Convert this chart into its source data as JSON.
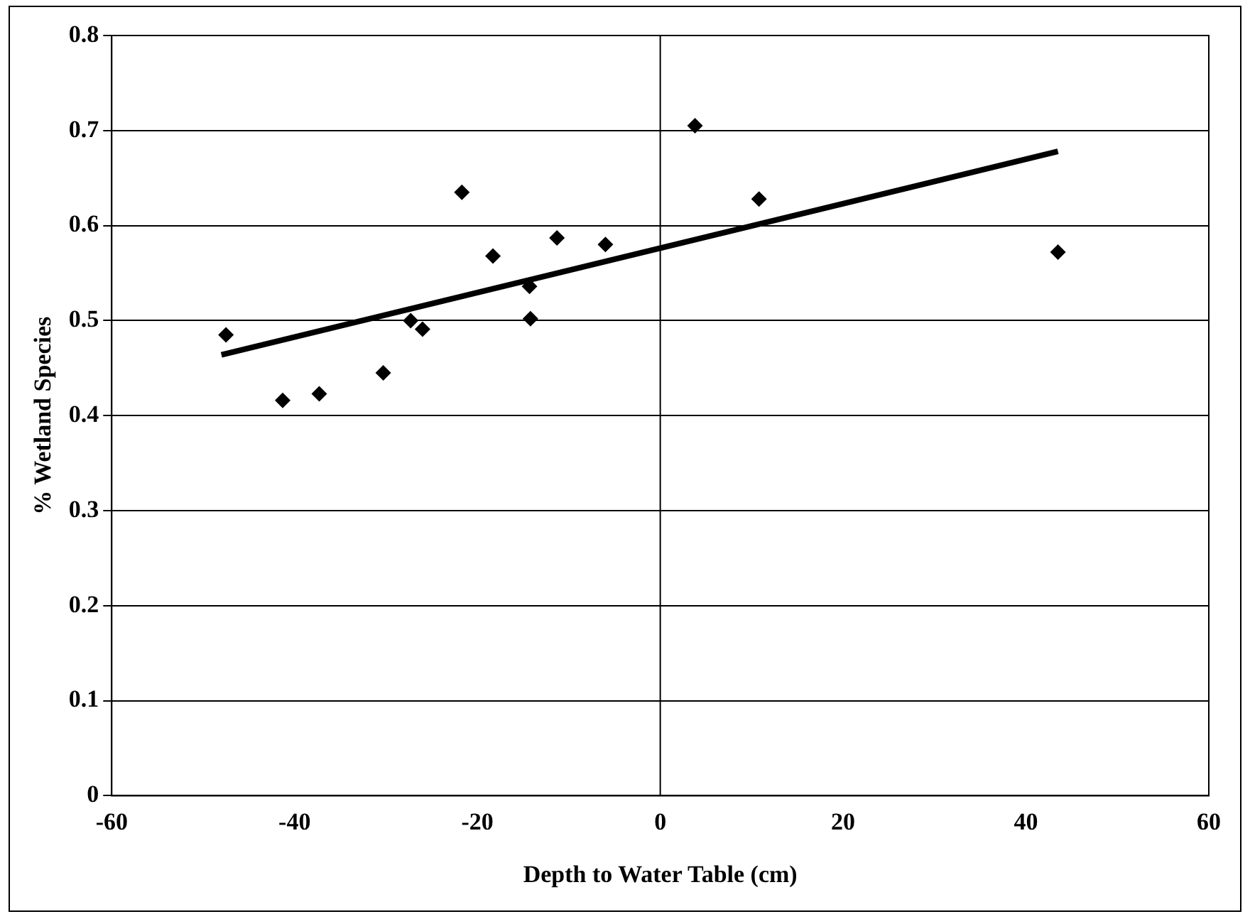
{
  "chart_data": {
    "type": "scatter",
    "xlabel": "Depth to Water Table (cm)",
    "ylabel": "% Wetland Species",
    "xlim": [
      -60,
      60
    ],
    "xticks": [
      -60,
      -40,
      -20,
      0,
      20,
      40,
      60
    ],
    "ylim": [
      0,
      0.8
    ],
    "yticks": [
      0,
      0.1,
      0.2,
      0.3,
      0.4,
      0.5,
      0.6,
      0.7,
      0.8
    ],
    "grid": "y",
    "legend": false,
    "marker": "diamond",
    "ref_lines": [
      {
        "axis": "x",
        "value": 0,
        "color": "#000000"
      }
    ],
    "series": [
      {
        "type": "scatter",
        "color": "#000000",
        "x": [
          -47.5,
          -41.3,
          -37.3,
          -30.3,
          -27.3,
          -26,
          -21.7,
          -18.3,
          -14.3,
          -14.2,
          -11.3,
          -6,
          3.8,
          10.8,
          43.5
        ],
        "values": [
          0.485,
          0.416,
          0.423,
          0.445,
          0.5,
          0.491,
          0.635,
          0.568,
          0.536,
          0.502,
          0.587,
          0.58,
          0.705,
          0.628,
          0.572
        ]
      },
      {
        "type": "line",
        "color": "#000000",
        "marker": "none",
        "x": [
          -48,
          43.5
        ],
        "values": [
          0.464,
          0.678
        ]
      }
    ]
  }
}
